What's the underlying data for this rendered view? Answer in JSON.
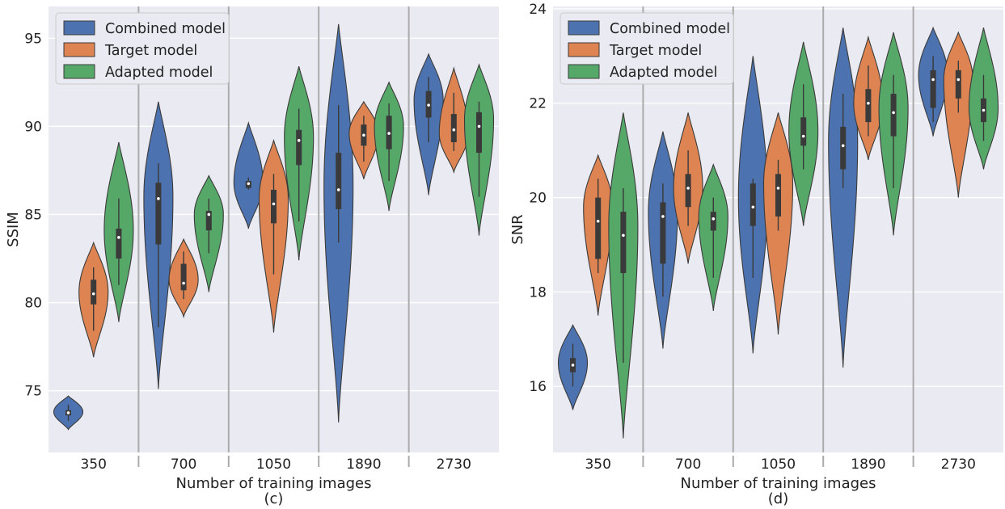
{
  "series_colors": {
    "Combined model": "#4c72b0",
    "Target model": "#dd8452",
    "Adapted model": "#55a868"
  },
  "chart_data": [
    {
      "type": "violin",
      "caption": "(c)",
      "xlabel": "Number of training images",
      "ylabel": "SSIM",
      "categories": [
        "350",
        "700",
        "1050",
        "1890",
        "2730"
      ],
      "ylim": [
        71.5,
        96.8
      ],
      "yticks": [
        75,
        80,
        85,
        90,
        95
      ],
      "grid": true,
      "legend_position": "top-left",
      "series": [
        {
          "name": "Combined model",
          "color": "#4c72b0",
          "violins": [
            {
              "min": 72.8,
              "max": 74.7,
              "q1": 73.6,
              "median": 73.75,
              "q3": 73.9,
              "whisker_lo": 73.3,
              "whisker_hi": 74.2,
              "mode": 73.8
            },
            {
              "min": 75.1,
              "max": 91.4,
              "q1": 83.3,
              "median": 85.9,
              "q3": 86.8,
              "whisker_lo": 78.6,
              "whisker_hi": 87.9,
              "mode": 86.0
            },
            {
              "min": 84.2,
              "max": 90.2,
              "q1": 86.5,
              "median": 86.75,
              "q3": 86.9,
              "whisker_lo": 86.4,
              "whisker_hi": 87.1,
              "mode": 86.8
            },
            {
              "min": 73.2,
              "max": 95.8,
              "q1": 85.3,
              "median": 86.4,
              "q3": 88.5,
              "whisker_lo": 83.4,
              "whisker_hi": 91.2,
              "mode": 86.6
            },
            {
              "min": 86.1,
              "max": 94.1,
              "q1": 90.5,
              "median": 91.2,
              "q3": 92.0,
              "whisker_lo": 89.1,
              "whisker_hi": 92.8,
              "mode": 91.5
            }
          ]
        },
        {
          "name": "Target model",
          "color": "#dd8452",
          "violins": [
            {
              "min": 76.9,
              "max": 83.4,
              "q1": 79.9,
              "median": 80.5,
              "q3": 81.3,
              "whisker_lo": 78.4,
              "whisker_hi": 82.0,
              "mode": 80.6
            },
            {
              "min": 79.2,
              "max": 83.6,
              "q1": 80.7,
              "median": 81.1,
              "q3": 82.2,
              "whisker_lo": 80.2,
              "whisker_hi": 82.9,
              "mode": 81.3
            },
            {
              "min": 78.3,
              "max": 89.2,
              "q1": 84.5,
              "median": 85.6,
              "q3": 86.4,
              "whisker_lo": 81.6,
              "whisker_hi": 87.3,
              "mode": 85.9
            },
            {
              "min": 87.0,
              "max": 91.4,
              "q1": 88.9,
              "median": 89.5,
              "q3": 90.1,
              "whisker_lo": 88.0,
              "whisker_hi": 90.6,
              "mode": 89.6
            },
            {
              "min": 87.4,
              "max": 93.3,
              "q1": 89.1,
              "median": 89.8,
              "q3": 90.7,
              "whisker_lo": 88.6,
              "whisker_hi": 91.9,
              "mode": 89.6
            }
          ]
        },
        {
          "name": "Adapted model",
          "color": "#55a868",
          "violins": [
            {
              "min": 78.9,
              "max": 89.1,
              "q1": 82.5,
              "median": 83.7,
              "q3": 84.2,
              "whisker_lo": 81.0,
              "whisker_hi": 85.9,
              "mode": 84.1
            },
            {
              "min": 80.6,
              "max": 87.2,
              "q1": 84.1,
              "median": 85.0,
              "q3": 85.2,
              "whisker_lo": 82.8,
              "whisker_hi": 85.9,
              "mode": 85.0
            },
            {
              "min": 82.4,
              "max": 93.4,
              "q1": 87.8,
              "median": 89.2,
              "q3": 89.8,
              "whisker_lo": 84.6,
              "whisker_hi": 91.0,
              "mode": 89.4
            },
            {
              "min": 85.2,
              "max": 92.5,
              "q1": 88.7,
              "median": 89.6,
              "q3": 90.6,
              "whisker_lo": 86.9,
              "whisker_hi": 91.3,
              "mode": 90.0
            },
            {
              "min": 83.8,
              "max": 93.5,
              "q1": 88.5,
              "median": 90.0,
              "q3": 90.8,
              "whisker_lo": 86.0,
              "whisker_hi": 91.4,
              "mode": 90.4
            }
          ]
        }
      ]
    },
    {
      "type": "violin",
      "caption": "(d)",
      "xlabel": "Number of training images",
      "ylabel": "SNR",
      "categories": [
        "350",
        "700",
        "1050",
        "1890",
        "2730"
      ],
      "ylim": [
        14.6,
        24.05
      ],
      "yticks": [
        16,
        18,
        20,
        22,
        24
      ],
      "grid": true,
      "legend_position": "top-left",
      "series": [
        {
          "name": "Combined model",
          "color": "#4c72b0",
          "violins": [
            {
              "min": 15.5,
              "max": 17.3,
              "q1": 16.3,
              "median": 16.45,
              "q3": 16.6,
              "whisker_lo": 16.0,
              "whisker_hi": 16.9,
              "mode": 16.5
            },
            {
              "min": 16.8,
              "max": 21.4,
              "q1": 18.6,
              "median": 19.6,
              "q3": 19.9,
              "whisker_lo": 17.9,
              "whisker_hi": 20.3,
              "mode": 19.7
            },
            {
              "min": 16.7,
              "max": 23.0,
              "q1": 19.4,
              "median": 19.8,
              "q3": 20.3,
              "whisker_lo": 18.3,
              "whisker_hi": 20.4,
              "mode": 20.0
            },
            {
              "min": 16.4,
              "max": 23.6,
              "q1": 20.6,
              "median": 21.1,
              "q3": 21.5,
              "whisker_lo": 20.2,
              "whisker_hi": 22.2,
              "mode": 21.2
            },
            {
              "min": 21.3,
              "max": 23.6,
              "q1": 21.9,
              "median": 22.5,
              "q3": 22.7,
              "whisker_lo": 21.6,
              "whisker_hi": 23.0,
              "mode": 22.6
            }
          ]
        },
        {
          "name": "Target model",
          "color": "#dd8452",
          "violins": [
            {
              "min": 17.5,
              "max": 20.9,
              "q1": 18.7,
              "median": 19.5,
              "q3": 20.0,
              "whisker_lo": 18.4,
              "whisker_hi": 20.4,
              "mode": 19.8
            },
            {
              "min": 18.6,
              "max": 21.8,
              "q1": 19.8,
              "median": 20.2,
              "q3": 20.5,
              "whisker_lo": 19.4,
              "whisker_hi": 21.0,
              "mode": 20.2
            },
            {
              "min": 17.1,
              "max": 21.8,
              "q1": 19.6,
              "median": 20.2,
              "q3": 20.5,
              "whisker_lo": 19.3,
              "whisker_hi": 20.8,
              "mode": 20.3
            },
            {
              "min": 20.8,
              "max": 23.4,
              "q1": 21.6,
              "median": 22.0,
              "q3": 22.3,
              "whisker_lo": 21.3,
              "whisker_hi": 22.8,
              "mode": 22.0
            },
            {
              "min": 20.0,
              "max": 23.5,
              "q1": 22.1,
              "median": 22.5,
              "q3": 22.7,
              "whisker_lo": 21.8,
              "whisker_hi": 22.9,
              "mode": 22.5
            }
          ]
        },
        {
          "name": "Adapted model",
          "color": "#55a868",
          "violins": [
            {
              "min": 14.9,
              "max": 21.8,
              "q1": 18.4,
              "median": 19.2,
              "q3": 19.7,
              "whisker_lo": 16.5,
              "whisker_hi": 20.2,
              "mode": 19.4
            },
            {
              "min": 17.6,
              "max": 20.7,
              "q1": 19.3,
              "median": 19.55,
              "q3": 19.7,
              "whisker_lo": 18.3,
              "whisker_hi": 20.0,
              "mode": 19.6
            },
            {
              "min": 19.4,
              "max": 23.3,
              "q1": 21.1,
              "median": 21.3,
              "q3": 21.7,
              "whisker_lo": 20.6,
              "whisker_hi": 22.4,
              "mode": 21.4
            },
            {
              "min": 19.2,
              "max": 23.5,
              "q1": 21.3,
              "median": 21.8,
              "q3": 22.2,
              "whisker_lo": 20.2,
              "whisker_hi": 22.6,
              "mode": 21.9
            },
            {
              "min": 20.6,
              "max": 23.6,
              "q1": 21.6,
              "median": 21.85,
              "q3": 22.1,
              "whisker_lo": 21.2,
              "whisker_hi": 22.6,
              "mode": 21.9
            }
          ]
        }
      ]
    }
  ]
}
